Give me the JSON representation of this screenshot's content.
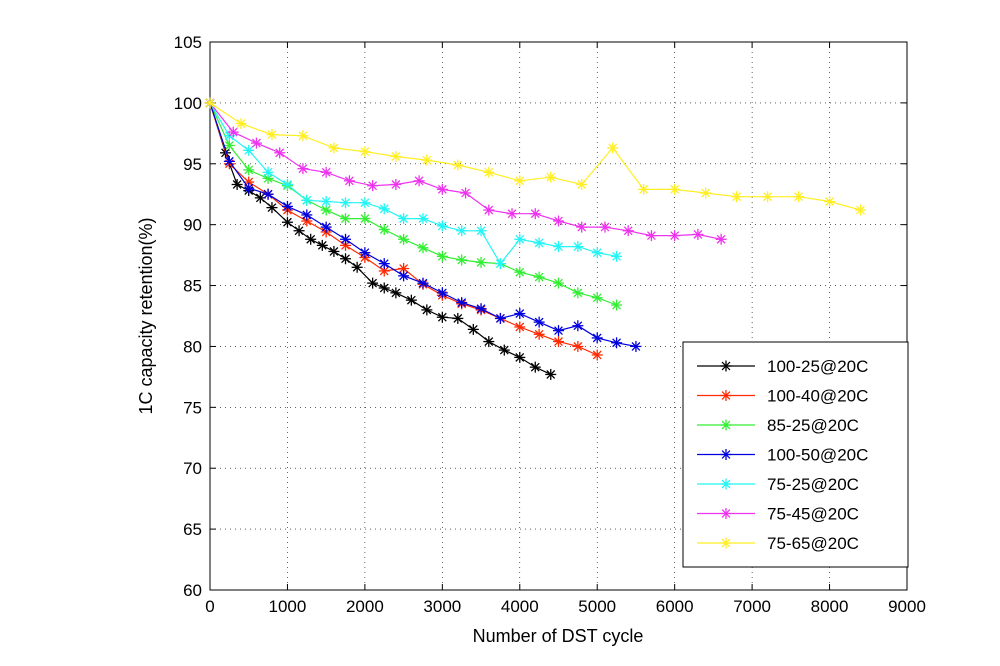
{
  "chart_data": {
    "type": "line",
    "title": "",
    "xlabel": "Number of DST cycle",
    "ylabel": "1C capacity retention(%)",
    "xlim": [
      0,
      9000
    ],
    "ylim": [
      60,
      105
    ],
    "xticks": [
      "0",
      "1000",
      "2000",
      "3000",
      "4000",
      "5000",
      "6000",
      "7000",
      "8000",
      "9000"
    ],
    "yticks": [
      "60",
      "65",
      "70",
      "75",
      "80",
      "85",
      "90",
      "95",
      "100",
      "105"
    ],
    "grid": true,
    "legend_position": "bottom-right",
    "series": [
      {
        "name": "100-25@20C",
        "color": "#000000",
        "x": [
          0,
          200,
          350,
          500,
          650,
          800,
          1000,
          1150,
          1300,
          1450,
          1600,
          1750,
          1900,
          2100,
          2250,
          2400,
          2600,
          2800,
          3000,
          3200,
          3400,
          3600,
          3800,
          4000,
          4200,
          4400
        ],
        "y": [
          100,
          95.9,
          93.3,
          92.8,
          92.2,
          91.4,
          90.2,
          89.5,
          88.8,
          88.3,
          87.8,
          87.2,
          86.5,
          85.2,
          84.8,
          84.4,
          83.8,
          83.0,
          82.4,
          82.3,
          81.4,
          80.4,
          79.7,
          79.1,
          78.3,
          77.7
        ]
      },
      {
        "name": "100-40@20C",
        "color": "#ff2a00",
        "x": [
          0,
          250,
          500,
          750,
          1000,
          1250,
          1500,
          1750,
          2000,
          2250,
          2500,
          2750,
          3000,
          3250,
          3500,
          3750,
          4000,
          4250,
          4500,
          4750,
          5000
        ],
        "y": [
          100,
          95.0,
          93.5,
          92.5,
          91.2,
          90.3,
          89.4,
          88.3,
          87.3,
          86.2,
          86.4,
          85.1,
          84.2,
          83.5,
          83.0,
          82.3,
          81.6,
          81.0,
          80.4,
          80.0,
          79.3
        ]
      },
      {
        "name": "85-25@20C",
        "color": "#33ee33",
        "x": [
          0,
          250,
          500,
          750,
          1000,
          1250,
          1500,
          1750,
          2000,
          2250,
          2500,
          2750,
          3000,
          3250,
          3500,
          3750,
          4000,
          4250,
          4500,
          4750,
          5000,
          5250
        ],
        "y": [
          100,
          96.5,
          94.5,
          93.8,
          93.2,
          92.0,
          91.2,
          90.5,
          90.5,
          89.6,
          88.8,
          88.1,
          87.4,
          87.1,
          86.9,
          86.8,
          86.1,
          85.7,
          85.2,
          84.4,
          84.0,
          83.4
        ]
      },
      {
        "name": "100-50@20C",
        "color": "#0000dd",
        "x": [
          0,
          250,
          500,
          750,
          1000,
          1250,
          1500,
          1750,
          2000,
          2250,
          2500,
          2750,
          3000,
          3250,
          3500,
          3750,
          4000,
          4250,
          4500,
          4750,
          5000,
          5250,
          5500
        ],
        "y": [
          100,
          95.2,
          93.0,
          92.5,
          91.5,
          90.8,
          89.8,
          88.8,
          87.7,
          86.8,
          85.8,
          85.2,
          84.4,
          83.6,
          83.1,
          82.3,
          82.7,
          82.0,
          81.3,
          81.7,
          80.7,
          80.3,
          80.0
        ]
      },
      {
        "name": "75-25@20C",
        "color": "#22f5f5",
        "x": [
          0,
          250,
          500,
          750,
          1000,
          1250,
          1500,
          1750,
          2000,
          2250,
          2500,
          2750,
          3000,
          3250,
          3500,
          3750,
          4000,
          4250,
          4500,
          4750,
          5000,
          5250
        ],
        "y": [
          100,
          97.3,
          96.1,
          94.3,
          93.3,
          92.0,
          91.9,
          91.8,
          91.8,
          91.3,
          90.5,
          90.5,
          89.9,
          89.5,
          89.5,
          86.8,
          88.8,
          88.5,
          88.2,
          88.2,
          87.7,
          87.4
        ]
      },
      {
        "name": "75-45@20C",
        "color": "#ee33ee",
        "x": [
          0,
          300,
          600,
          900,
          1200,
          1500,
          1800,
          2100,
          2400,
          2700,
          3000,
          3300,
          3600,
          3900,
          4200,
          4500,
          4800,
          5100,
          5400,
          5700,
          6000,
          6300,
          6600
        ],
        "y": [
          100,
          97.6,
          96.7,
          95.9,
          94.6,
          94.3,
          93.6,
          93.2,
          93.3,
          93.6,
          92.9,
          92.6,
          91.2,
          90.9,
          90.9,
          90.3,
          89.8,
          89.8,
          89.5,
          89.1,
          89.1,
          89.2,
          88.8
        ]
      },
      {
        "name": "75-65@20C",
        "color": "#ffee22",
        "x": [
          0,
          400,
          800,
          1200,
          1600,
          2000,
          2400,
          2800,
          3200,
          3600,
          4000,
          4400,
          4800,
          5200,
          5600,
          6000,
          6400,
          6800,
          7200,
          7600,
          8000,
          8400
        ],
        "y": [
          100,
          98.3,
          97.4,
          97.3,
          96.3,
          96.0,
          95.6,
          95.3,
          94.9,
          94.3,
          93.6,
          93.9,
          93.3,
          96.3,
          92.9,
          92.9,
          92.6,
          92.3,
          92.3,
          92.3,
          91.9,
          91.2
        ]
      }
    ]
  }
}
